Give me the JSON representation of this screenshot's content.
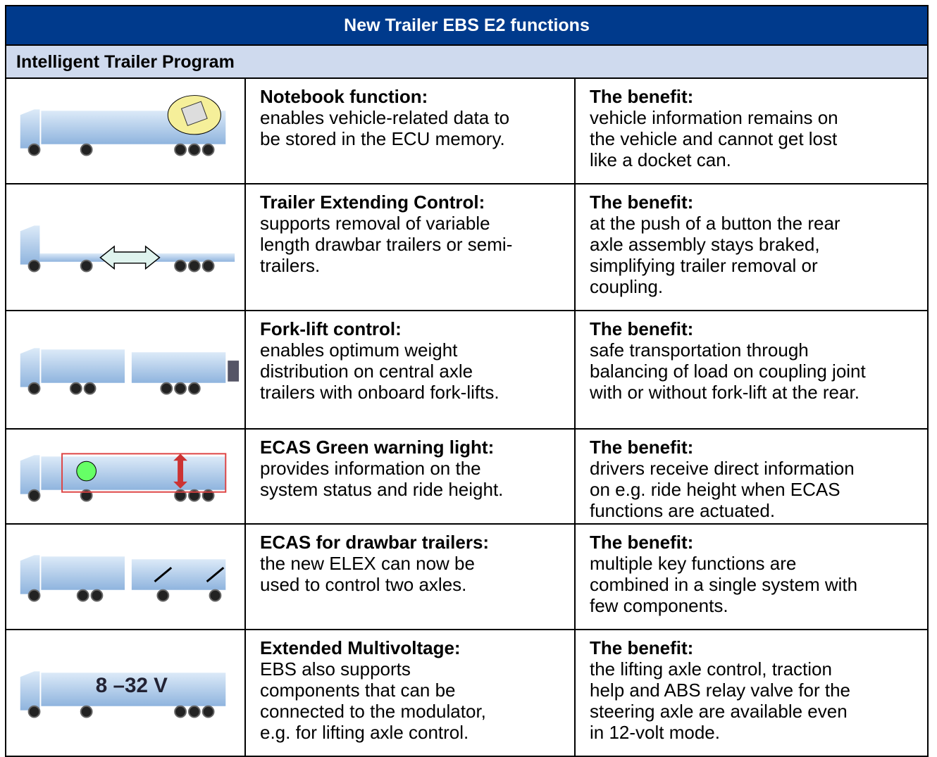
{
  "header": {
    "title": "New Trailer EBS E2 functions",
    "subtitle": "Intelligent Trailer Program"
  },
  "table": {
    "rows": [
      {
        "feature": "Notebook function:",
        "description": [
          "enables vehicle-related data to",
          "be stored in the ECU memory."
        ],
        "benefit_title": "The benefit:",
        "benefit": [
          "vehicle information remains on",
          "the vehicle and cannot get lost",
          "like a docket can."
        ]
      },
      {
        "feature": "Trailer Extending Control:",
        "description": [
          "supports removal of variable",
          "length drawbar trailers or semi-",
          "trailers."
        ],
        "benefit_title": "The benefit:",
        "benefit": [
          "at the push of a button the rear",
          "axle assembly stays braked,",
          "simplifying trailer removal or",
          "coupling."
        ]
      },
      {
        "feature": "Fork-lift control:",
        "description": [
          "enables optimum weight",
          "distribution on central axle",
          "trailers with onboard fork-lifts."
        ],
        "benefit_title": "The benefit:",
        "benefit": [
          "safe transportation through",
          "balancing of load on coupling joint",
          "with or without fork-lift at the rear."
        ]
      },
      {
        "feature": "ECAS Green warning light:",
        "description": [
          "provides information on the",
          "system status and ride height."
        ],
        "benefit_title": "The benefit:",
        "benefit": [
          "drivers receive direct information",
          "on e.g. ride height when ECAS",
          "functions are actuated."
        ]
      },
      {
        "feature": "ECAS for drawbar trailers:",
        "description": [
          "the new ELEX can now be",
          "used to control two axles."
        ],
        "benefit_title": "The benefit:",
        "benefit": [
          "multiple key functions are",
          "combined in a single system with",
          "few components."
        ]
      },
      {
        "feature": "Extended Multivoltage:",
        "description": [
          "EBS also supports",
          "components that can be",
          "connected to the modulator,",
          "e.g. for lifting axle control."
        ],
        "benefit_title": "The benefit:",
        "benefit": [
          "the lifting axle control, traction",
          "help and ABS relay valve for the",
          "steering axle are available even",
          "in 12-volt mode."
        ],
        "image_label": "8 –32 V"
      }
    ]
  }
}
